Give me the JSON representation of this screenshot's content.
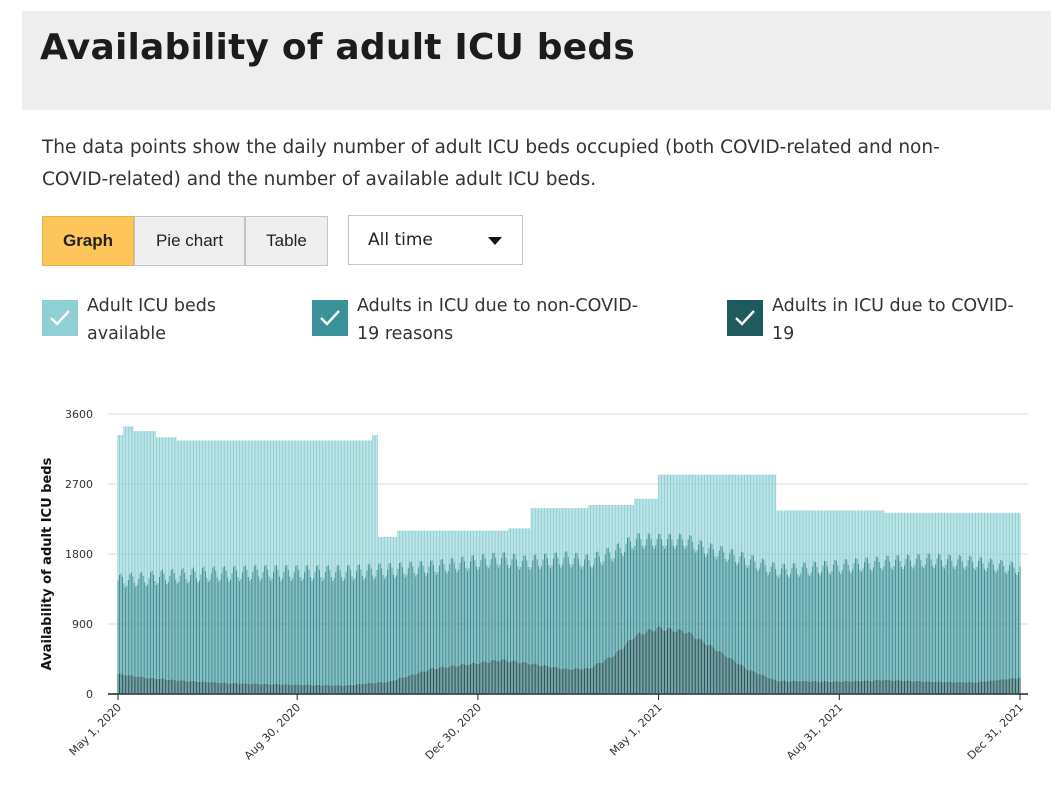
{
  "page": {
    "title": "Availability of adult ICU beds",
    "description": "The data points show the daily number of adult ICU beds occupied (both COVID-related and non-COVID-related) and the number of available adult ICU beds."
  },
  "controls": {
    "views": [
      "Graph",
      "Pie chart",
      "Table"
    ],
    "active_view": "Graph",
    "time_range": "All time"
  },
  "legend": [
    {
      "label": "Adult ICU beds available",
      "color": "#8fd0d4",
      "checked": true
    },
    {
      "label": "Adults in ICU due to non-COVID-19 reasons",
      "color": "#3b9198",
      "checked": true
    },
    {
      "label": "Adults in ICU due to COVID-19",
      "color": "#1f5a5e",
      "checked": true
    }
  ],
  "chart_data": {
    "type": "bar",
    "stacked": true,
    "ylabel": "Availability of adult ICU beds",
    "ylim": [
      0,
      3600
    ],
    "yticks": [
      0,
      900,
      1800,
      2700,
      3600
    ],
    "xticks": [
      "May 1, 2020",
      "Aug 30, 2020",
      "Dec 30, 2020",
      "May 1, 2021",
      "Aug 31, 2021",
      "Dec 31, 2021"
    ],
    "x_range": [
      "2020-05-01",
      "2021-12-31"
    ],
    "grid": true,
    "series": [
      {
        "name": "Adults in ICU due to COVID-19",
        "color": "#1f5a5e",
        "points": [
          [
            "2020-05-01",
            260
          ],
          [
            "2020-05-20",
            210
          ],
          [
            "2020-06-15",
            170
          ],
          [
            "2020-07-15",
            140
          ],
          [
            "2020-08-30",
            120
          ],
          [
            "2020-09-30",
            110
          ],
          [
            "2020-10-31",
            160
          ],
          [
            "2020-11-30",
            330
          ],
          [
            "2020-12-30",
            400
          ],
          [
            "2021-01-15",
            440
          ],
          [
            "2021-01-31",
            400
          ],
          [
            "2021-02-28",
            320
          ],
          [
            "2021-03-15",
            330
          ],
          [
            "2021-04-01",
            500
          ],
          [
            "2021-04-15",
            750
          ],
          [
            "2021-05-01",
            850
          ],
          [
            "2021-05-20",
            800
          ],
          [
            "2021-06-10",
            560
          ],
          [
            "2021-06-30",
            320
          ],
          [
            "2021-07-20",
            170
          ],
          [
            "2021-08-31",
            160
          ],
          [
            "2021-09-30",
            180
          ],
          [
            "2021-10-31",
            160
          ],
          [
            "2021-11-30",
            150
          ],
          [
            "2021-12-31",
            210
          ]
        ]
      },
      {
        "name": "Adults in ICU due to non-COVID-19 reasons",
        "color": "#3b9198",
        "points": [
          [
            "2020-05-01",
            1200
          ],
          [
            "2020-06-01",
            1320
          ],
          [
            "2020-07-01",
            1390
          ],
          [
            "2020-08-01",
            1430
          ],
          [
            "2020-08-30",
            1440
          ],
          [
            "2020-09-30",
            1450
          ],
          [
            "2020-10-31",
            1430
          ],
          [
            "2020-11-30",
            1300
          ],
          [
            "2020-12-30",
            1300
          ],
          [
            "2021-01-31",
            1290
          ],
          [
            "2021-02-28",
            1420
          ],
          [
            "2021-03-31",
            1320
          ],
          [
            "2021-05-01",
            1120
          ],
          [
            "2021-05-31",
            1200
          ],
          [
            "2021-06-30",
            1400
          ],
          [
            "2021-07-31",
            1430
          ],
          [
            "2021-08-31",
            1480
          ],
          [
            "2021-09-30",
            1510
          ],
          [
            "2021-10-31",
            1560
          ],
          [
            "2021-11-30",
            1540
          ],
          [
            "2021-12-31",
            1400
          ]
        ]
      },
      {
        "name": "Adult ICU beds available",
        "color": "#8fd0d4",
        "total_capacity_steps": [
          [
            "2020-05-01",
            3330
          ],
          [
            "2020-05-05",
            3440
          ],
          [
            "2020-05-12",
            3380
          ],
          [
            "2020-05-27",
            3300
          ],
          [
            "2020-06-10",
            3260
          ],
          [
            "2020-10-20",
            3330
          ],
          [
            "2020-10-24",
            2020
          ],
          [
            "2020-11-06",
            2100
          ],
          [
            "2021-01-20",
            2130
          ],
          [
            "2021-02-04",
            2390
          ],
          [
            "2021-03-15",
            2430
          ],
          [
            "2021-04-15",
            2510
          ],
          [
            "2021-05-01",
            2820
          ],
          [
            "2021-07-20",
            2360
          ],
          [
            "2021-10-01",
            2330
          ],
          [
            "2021-12-31",
            2320
          ]
        ]
      }
    ]
  }
}
